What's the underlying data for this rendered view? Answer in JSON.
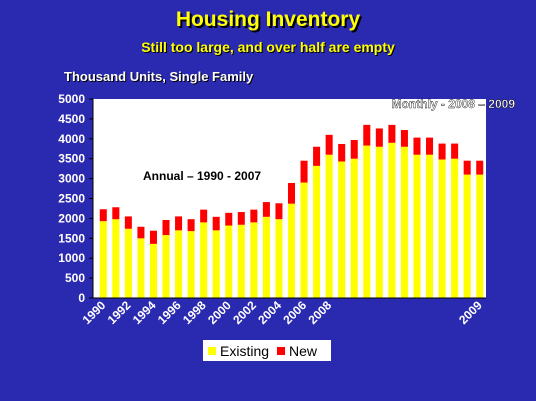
{
  "header": {
    "title": "Housing Inventory",
    "subtitle": "Still too large, and over half are empty",
    "units": "Thousand Units, Single Family"
  },
  "annotations": {
    "annual": "Annual – 1990 - 2007",
    "monthly": "Monthly - 2008 – 2009"
  },
  "colors": {
    "background": "#2a2ab0",
    "plot_background": "#ffffff",
    "existing": "#ffff00",
    "new": "#ff0000",
    "title": "#ffff00"
  },
  "chart_data": {
    "type": "bar",
    "stacked": true,
    "title": "Housing Inventory",
    "subtitle": "Still too large, and over half are empty",
    "ylabel": "Thousand Units, Single Family",
    "ylim": [
      0,
      5000
    ],
    "yticks": [
      0,
      500,
      1000,
      1500,
      2000,
      2500,
      3000,
      3500,
      4000,
      4500,
      5000
    ],
    "xtick_labels": [
      "1990",
      "1992",
      "1994",
      "1996",
      "1998",
      "2000",
      "2002",
      "2004",
      "2006",
      "2008",
      "2009"
    ],
    "grid": false,
    "legend": "bottom",
    "categories": [
      "1990",
      "1991",
      "1992",
      "1993",
      "1994",
      "1995",
      "1996",
      "1997",
      "1998",
      "1999",
      "2000",
      "2001",
      "2002",
      "2003",
      "2004",
      "2005",
      "2006",
      "2007",
      "2008-01",
      "2008-02",
      "2008-03",
      "2008-04",
      "2008-05",
      "2008-06",
      "2008-07",
      "2008-08",
      "2008-09",
      "2008-10",
      "2008-11",
      "2008-12",
      "2009-01"
    ],
    "series": [
      {
        "name": "Existing",
        "color": "#ffff00",
        "values": [
          1930,
          1980,
          1740,
          1500,
          1360,
          1580,
          1700,
          1680,
          1900,
          1700,
          1820,
          1840,
          1900,
          2040,
          1980,
          2370,
          2900,
          3320,
          3600,
          3430,
          3500,
          3830,
          3800,
          3900,
          3800,
          3600,
          3600,
          3480,
          3500,
          3100,
          3100
        ]
      },
      {
        "name": "New",
        "color": "#ff0000",
        "values": [
          300,
          300,
          310,
          290,
          330,
          380,
          350,
          300,
          320,
          340,
          320,
          320,
          320,
          370,
          400,
          520,
          550,
          480,
          500,
          440,
          470,
          520,
          460,
          450,
          420,
          430,
          430,
          400,
          380,
          350,
          350
        ]
      }
    ]
  },
  "legend": {
    "existing_label": "Existing",
    "new_label": "New"
  }
}
